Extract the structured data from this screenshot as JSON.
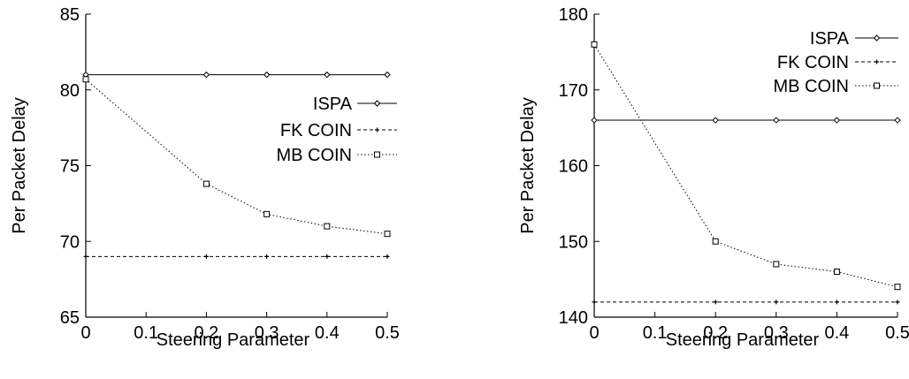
{
  "chart_data": [
    {
      "type": "line",
      "xlabel": "Steering Parameter",
      "ylabel": "Per Packet Delay",
      "xlim": [
        0,
        0.5
      ],
      "ylim": [
        65,
        85
      ],
      "x_ticks": [
        "0",
        "0.1",
        "0.2",
        "0.3",
        "0.4",
        "0.5"
      ],
      "y_ticks": [
        "65",
        "70",
        "75",
        "80",
        "85"
      ],
      "x": [
        0,
        0.2,
        0.3,
        0.4,
        0.5
      ],
      "legend_position": "right",
      "grid": false,
      "series": [
        {
          "name": "ISPA",
          "values": [
            81.0,
            81.0,
            81.0,
            81.0,
            81.0
          ],
          "marker": "diamond",
          "dash": "solid"
        },
        {
          "name": "FK COIN",
          "values": [
            69.0,
            69.0,
            69.0,
            69.0,
            69.0
          ],
          "marker": "plus",
          "dash": "dashed"
        },
        {
          "name": "MB COIN",
          "values": [
            80.7,
            73.8,
            71.8,
            71.0,
            70.5
          ],
          "marker": "square",
          "dash": "dotted"
        }
      ]
    },
    {
      "type": "line",
      "xlabel": "Steering Parameter",
      "ylabel": "Per Packet Delay",
      "xlim": [
        0,
        0.5
      ],
      "ylim": [
        140,
        180
      ],
      "x_ticks": [
        "0",
        "0.1",
        "0.2",
        "0.3",
        "0.4",
        "0.5"
      ],
      "y_ticks": [
        "140",
        "150",
        "160",
        "170",
        "180"
      ],
      "x": [
        0,
        0.2,
        0.3,
        0.4,
        0.5
      ],
      "legend_position": "top-right",
      "grid": false,
      "series": [
        {
          "name": "ISPA",
          "values": [
            166,
            166,
            166,
            166,
            166
          ],
          "marker": "diamond",
          "dash": "solid"
        },
        {
          "name": "FK COIN",
          "values": [
            142,
            142,
            142,
            142,
            142
          ],
          "marker": "plus",
          "dash": "dashed"
        },
        {
          "name": "MB COIN",
          "values": [
            176,
            150,
            147,
            146,
            144
          ],
          "marker": "square",
          "dash": "dotted"
        }
      ]
    }
  ]
}
